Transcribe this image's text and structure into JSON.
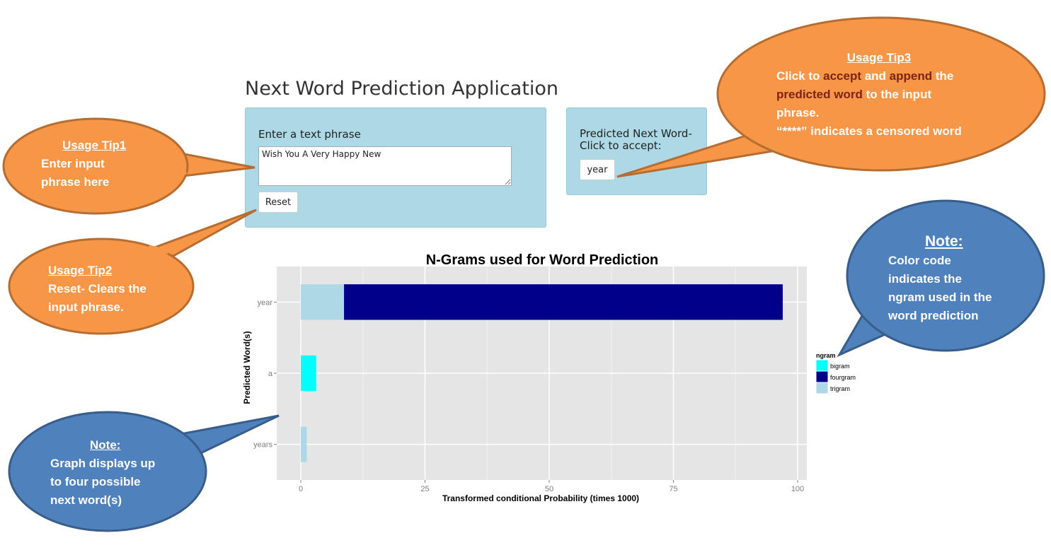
{
  "app": {
    "title": "Next Word Prediction Application"
  },
  "input_panel": {
    "label": "Enter a text phrase",
    "phrase_value": "Wish You A Very Happy New",
    "reset_label": "Reset"
  },
  "predict_panel": {
    "label": "Predicted Next Word- Click to accept:",
    "word_button": "year"
  },
  "tips": {
    "tip1": {
      "heading": "Usage Tip1",
      "line1": "Enter input",
      "line2": "phrase here"
    },
    "tip2": {
      "heading": "Usage Tip2",
      "line1": "Reset- Clears the",
      "line2": "input phrase."
    },
    "tip3": {
      "heading": "Usage Tip3",
      "p1": "Click to ",
      "accent1": "accept",
      "p2": " and ",
      "accent2": "append",
      "p3": " the",
      "accent3": "predicted word",
      "p4": " to the input",
      "line3": "phrase.",
      "line4": "“****” indicates a censored word"
    },
    "note_graph": {
      "heading": "Note:",
      "line1": "Graph displays up",
      "line2": "to four possible",
      "line3": "next word(s)"
    },
    "note_color": {
      "heading": "Note:",
      "line1": "Color code",
      "line2": "indicates the",
      "line3": "ngram used in the",
      "line4": "word prediction"
    }
  },
  "colors": {
    "orange_callout": "#f79646",
    "orange_border": "#b66d31",
    "blue_callout": "#4f81bd",
    "blue_border": "#385d8a",
    "panel": "#add8e6",
    "accent_text": "#7b2417"
  },
  "chart_data": {
    "type": "bar",
    "orientation": "horizontal",
    "stacked": true,
    "title": "N-Grams used for Word Prediction",
    "xlabel": "Transformed conditional Probability (times 1000)",
    "ylabel": "Predicted Word(s)",
    "categories": [
      "year",
      "a",
      "years"
    ],
    "xlim": [
      0,
      100
    ],
    "xticks": [
      0,
      25,
      50,
      75,
      100
    ],
    "grid": true,
    "legend": {
      "title": "ngram",
      "position": "right",
      "entries": [
        "bigram",
        "fourgram",
        "trigram"
      ]
    },
    "series": [
      {
        "name": "trigram",
        "color": "#add8e6",
        "values": [
          8.7,
          0,
          1.2
        ]
      },
      {
        "name": "fourgram",
        "color": "#00008b",
        "values": [
          88.3,
          0,
          0
        ]
      },
      {
        "name": "bigram",
        "color": "#00ffff",
        "values": [
          0,
          3.1,
          0
        ]
      }
    ]
  }
}
